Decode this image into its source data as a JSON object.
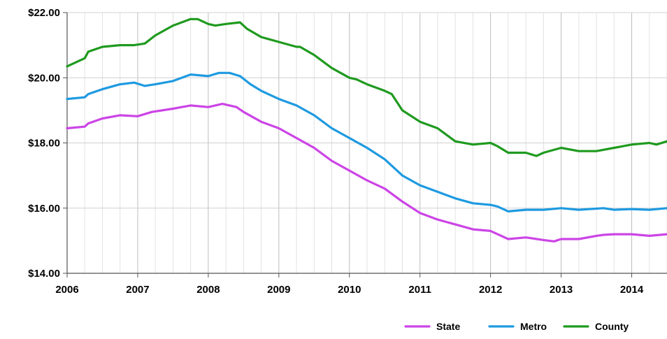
{
  "chart_data": {
    "type": "line",
    "title": "",
    "xlabel": "",
    "ylabel": "",
    "xlim": [
      2006,
      2014.5
    ],
    "ylim": [
      14,
      22
    ],
    "x_ticks": [
      "2006",
      "2007",
      "2008",
      "2009",
      "2010",
      "2011",
      "2012",
      "2013",
      "2014"
    ],
    "y_ticks": [
      "$14.00",
      "$16.00",
      "$18.00",
      "$20.00",
      "$22.00"
    ],
    "grid": true,
    "legend_position": "bottom-right",
    "series": [
      {
        "name": "State",
        "color": "#cc44e6",
        "x": [
          2006.0,
          2006.25,
          2006.3,
          2006.5,
          2006.75,
          2007.0,
          2007.2,
          2007.5,
          2007.75,
          2008.0,
          2008.2,
          2008.4,
          2008.5,
          2008.75,
          2009.0,
          2009.25,
          2009.5,
          2009.75,
          2010.0,
          2010.25,
          2010.5,
          2010.75,
          2011.0,
          2011.25,
          2011.5,
          2011.75,
          2012.0,
          2012.1,
          2012.25,
          2012.5,
          2012.75,
          2012.9,
          2013.0,
          2013.25,
          2013.5,
          2013.6,
          2013.75,
          2014.0,
          2014.25,
          2014.5
        ],
        "y": [
          18.45,
          18.5,
          18.6,
          18.75,
          18.85,
          18.82,
          18.95,
          19.05,
          19.15,
          19.1,
          19.2,
          19.1,
          18.95,
          18.65,
          18.45,
          18.15,
          17.85,
          17.45,
          17.15,
          16.85,
          16.6,
          16.2,
          15.85,
          15.65,
          15.5,
          15.35,
          15.3,
          15.2,
          15.05,
          15.1,
          15.02,
          14.98,
          15.05,
          15.05,
          15.15,
          15.18,
          15.2,
          15.2,
          15.15,
          15.2
        ]
      },
      {
        "name": "Metro",
        "color": "#1e9ae0",
        "x": [
          2006.0,
          2006.25,
          2006.3,
          2006.5,
          2006.75,
          2006.95,
          2007.1,
          2007.25,
          2007.5,
          2007.75,
          2008.0,
          2008.15,
          2008.3,
          2008.45,
          2008.6,
          2008.75,
          2009.0,
          2009.25,
          2009.5,
          2009.75,
          2010.0,
          2010.25,
          2010.5,
          2010.75,
          2011.0,
          2011.25,
          2011.5,
          2011.75,
          2012.0,
          2012.1,
          2012.25,
          2012.5,
          2012.75,
          2013.0,
          2013.25,
          2013.6,
          2013.75,
          2014.0,
          2014.25,
          2014.5
        ],
        "y": [
          19.35,
          19.4,
          19.5,
          19.65,
          19.8,
          19.85,
          19.75,
          19.8,
          19.9,
          20.1,
          20.05,
          20.15,
          20.15,
          20.05,
          19.8,
          19.6,
          19.35,
          19.15,
          18.85,
          18.45,
          18.15,
          17.85,
          17.5,
          17.0,
          16.7,
          16.5,
          16.3,
          16.15,
          16.1,
          16.05,
          15.9,
          15.95,
          15.95,
          16.0,
          15.95,
          16.0,
          15.95,
          15.97,
          15.95,
          16.0
        ]
      },
      {
        "name": "County",
        "color": "#1f9a1f",
        "x": [
          2006.0,
          2006.25,
          2006.3,
          2006.5,
          2006.75,
          2006.95,
          2007.1,
          2007.25,
          2007.5,
          2007.75,
          2007.85,
          2008.0,
          2008.1,
          2008.25,
          2008.45,
          2008.55,
          2008.75,
          2009.0,
          2009.25,
          2009.3,
          2009.5,
          2009.75,
          2010.0,
          2010.1,
          2010.25,
          2010.5,
          2010.6,
          2010.75,
          2011.0,
          2011.25,
          2011.5,
          2011.75,
          2012.0,
          2012.1,
          2012.25,
          2012.5,
          2012.65,
          2012.75,
          2013.0,
          2013.25,
          2013.5,
          2013.75,
          2014.0,
          2014.25,
          2014.35,
          2014.5
        ],
        "y": [
          20.35,
          20.6,
          20.8,
          20.95,
          21.0,
          21.0,
          21.05,
          21.3,
          21.6,
          21.8,
          21.8,
          21.65,
          21.6,
          21.65,
          21.7,
          21.5,
          21.25,
          21.1,
          20.95,
          20.95,
          20.7,
          20.3,
          20.0,
          19.95,
          19.8,
          19.6,
          19.5,
          19.0,
          18.65,
          18.45,
          18.05,
          17.95,
          18.0,
          17.9,
          17.7,
          17.7,
          17.6,
          17.7,
          17.85,
          17.75,
          17.75,
          17.85,
          17.95,
          18.0,
          17.95,
          18.05
        ]
      }
    ]
  }
}
